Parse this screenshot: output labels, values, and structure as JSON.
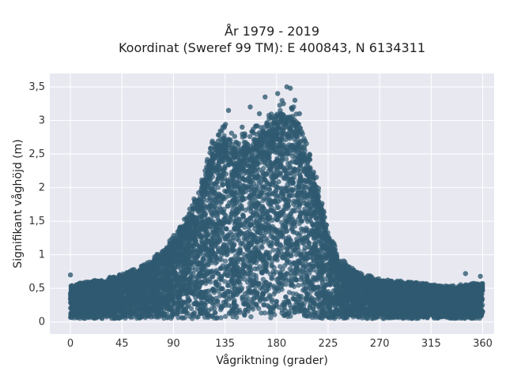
{
  "chart_data": {
    "type": "scatter",
    "title": "År 1979 - 2019",
    "subtitle": "Koordinat (Sweref 99 TM): E 400843, N 6134311",
    "xlabel": "Vågriktning (grader)",
    "ylabel": "Signifikant våghöjd (m)",
    "xlim": [
      -18,
      370
    ],
    "ylim": [
      -0.18,
      3.7
    ],
    "xticks": [
      {
        "value": 0,
        "label": "0"
      },
      {
        "value": 45,
        "label": "45"
      },
      {
        "value": 90,
        "label": "90"
      },
      {
        "value": 135,
        "label": "135"
      },
      {
        "value": 180,
        "label": "180"
      },
      {
        "value": 225,
        "label": "225"
      },
      {
        "value": 270,
        "label": "270"
      },
      {
        "value": 315,
        "label": "315"
      },
      {
        "value": 360,
        "label": "360"
      }
    ],
    "yticks": [
      {
        "value": 0,
        "label": "0"
      },
      {
        "value": 0.5,
        "label": "0,5"
      },
      {
        "value": 1,
        "label": "1"
      },
      {
        "value": 1.5,
        "label": "1,5"
      },
      {
        "value": 2,
        "label": "2"
      },
      {
        "value": 2.5,
        "label": "2,5"
      },
      {
        "value": 3,
        "label": "3"
      },
      {
        "value": 3.5,
        "label": "3,5"
      }
    ],
    "grid": true,
    "marker_color": "#2f5a70",
    "background_color": "#e8e8f1",
    "envelope": [
      {
        "x": 0,
        "max": 0.5
      },
      {
        "x": 10,
        "max": 0.55
      },
      {
        "x": 30,
        "max": 0.6
      },
      {
        "x": 50,
        "max": 0.7
      },
      {
        "x": 65,
        "max": 0.8
      },
      {
        "x": 80,
        "max": 1.0
      },
      {
        "x": 95,
        "max": 1.3
      },
      {
        "x": 105,
        "max": 1.6
      },
      {
        "x": 115,
        "max": 2.0
      },
      {
        "x": 125,
        "max": 2.6
      },
      {
        "x": 135,
        "max": 2.8
      },
      {
        "x": 145,
        "max": 2.55
      },
      {
        "x": 155,
        "max": 2.7
      },
      {
        "x": 165,
        "max": 2.75
      },
      {
        "x": 175,
        "max": 2.9
      },
      {
        "x": 185,
        "max": 3.1
      },
      {
        "x": 195,
        "max": 3.0
      },
      {
        "x": 205,
        "max": 2.6
      },
      {
        "x": 215,
        "max": 2.0
      },
      {
        "x": 225,
        "max": 1.3
      },
      {
        "x": 235,
        "max": 0.9
      },
      {
        "x": 250,
        "max": 0.7
      },
      {
        "x": 270,
        "max": 0.6
      },
      {
        "x": 300,
        "max": 0.55
      },
      {
        "x": 330,
        "max": 0.5
      },
      {
        "x": 360,
        "max": 0.55
      }
    ],
    "outliers": [
      {
        "x": 0,
        "y": 0.7
      },
      {
        "x": 138,
        "y": 3.15
      },
      {
        "x": 150,
        "y": 2.9
      },
      {
        "x": 157,
        "y": 3.2
      },
      {
        "x": 165,
        "y": 3.1
      },
      {
        "x": 170,
        "y": 3.35
      },
      {
        "x": 175,
        "y": 3.05
      },
      {
        "x": 181,
        "y": 3.4
      },
      {
        "x": 186,
        "y": 3.25
      },
      {
        "x": 189,
        "y": 3.5
      },
      {
        "x": 192,
        "y": 3.48
      },
      {
        "x": 196,
        "y": 3.3
      },
      {
        "x": 200,
        "y": 3.1
      },
      {
        "x": 345,
        "y": 0.72
      },
      {
        "x": 358,
        "y": 0.68
      }
    ]
  }
}
